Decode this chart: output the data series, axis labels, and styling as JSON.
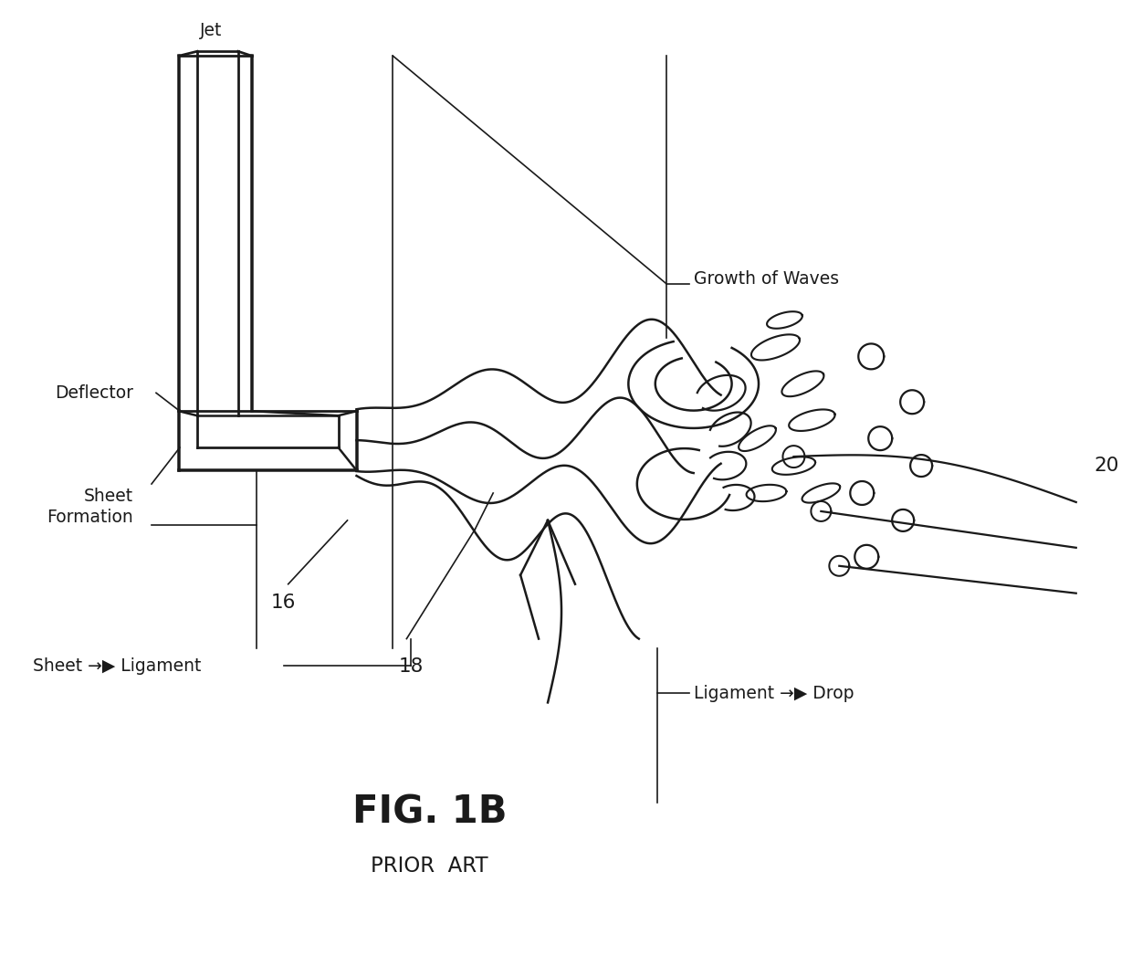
{
  "bg_color": "#ffffff",
  "line_color": "#1a1a1a",
  "lw": 1.8,
  "fig_title": "FIG. 1B",
  "prior_art": "PRIOR  ART",
  "label_jet": "Jet",
  "label_deflector": "Deflector",
  "label_sheet_formation": "Sheet\nFormation",
  "label_growth_waves": "Growth of Waves",
  "label_16": "16",
  "label_18": "18",
  "label_20": "20",
  "label_sheet_ligament": "Sheet →▶ Ligament",
  "label_ligament_drop": "Ligament →▶ Drop"
}
